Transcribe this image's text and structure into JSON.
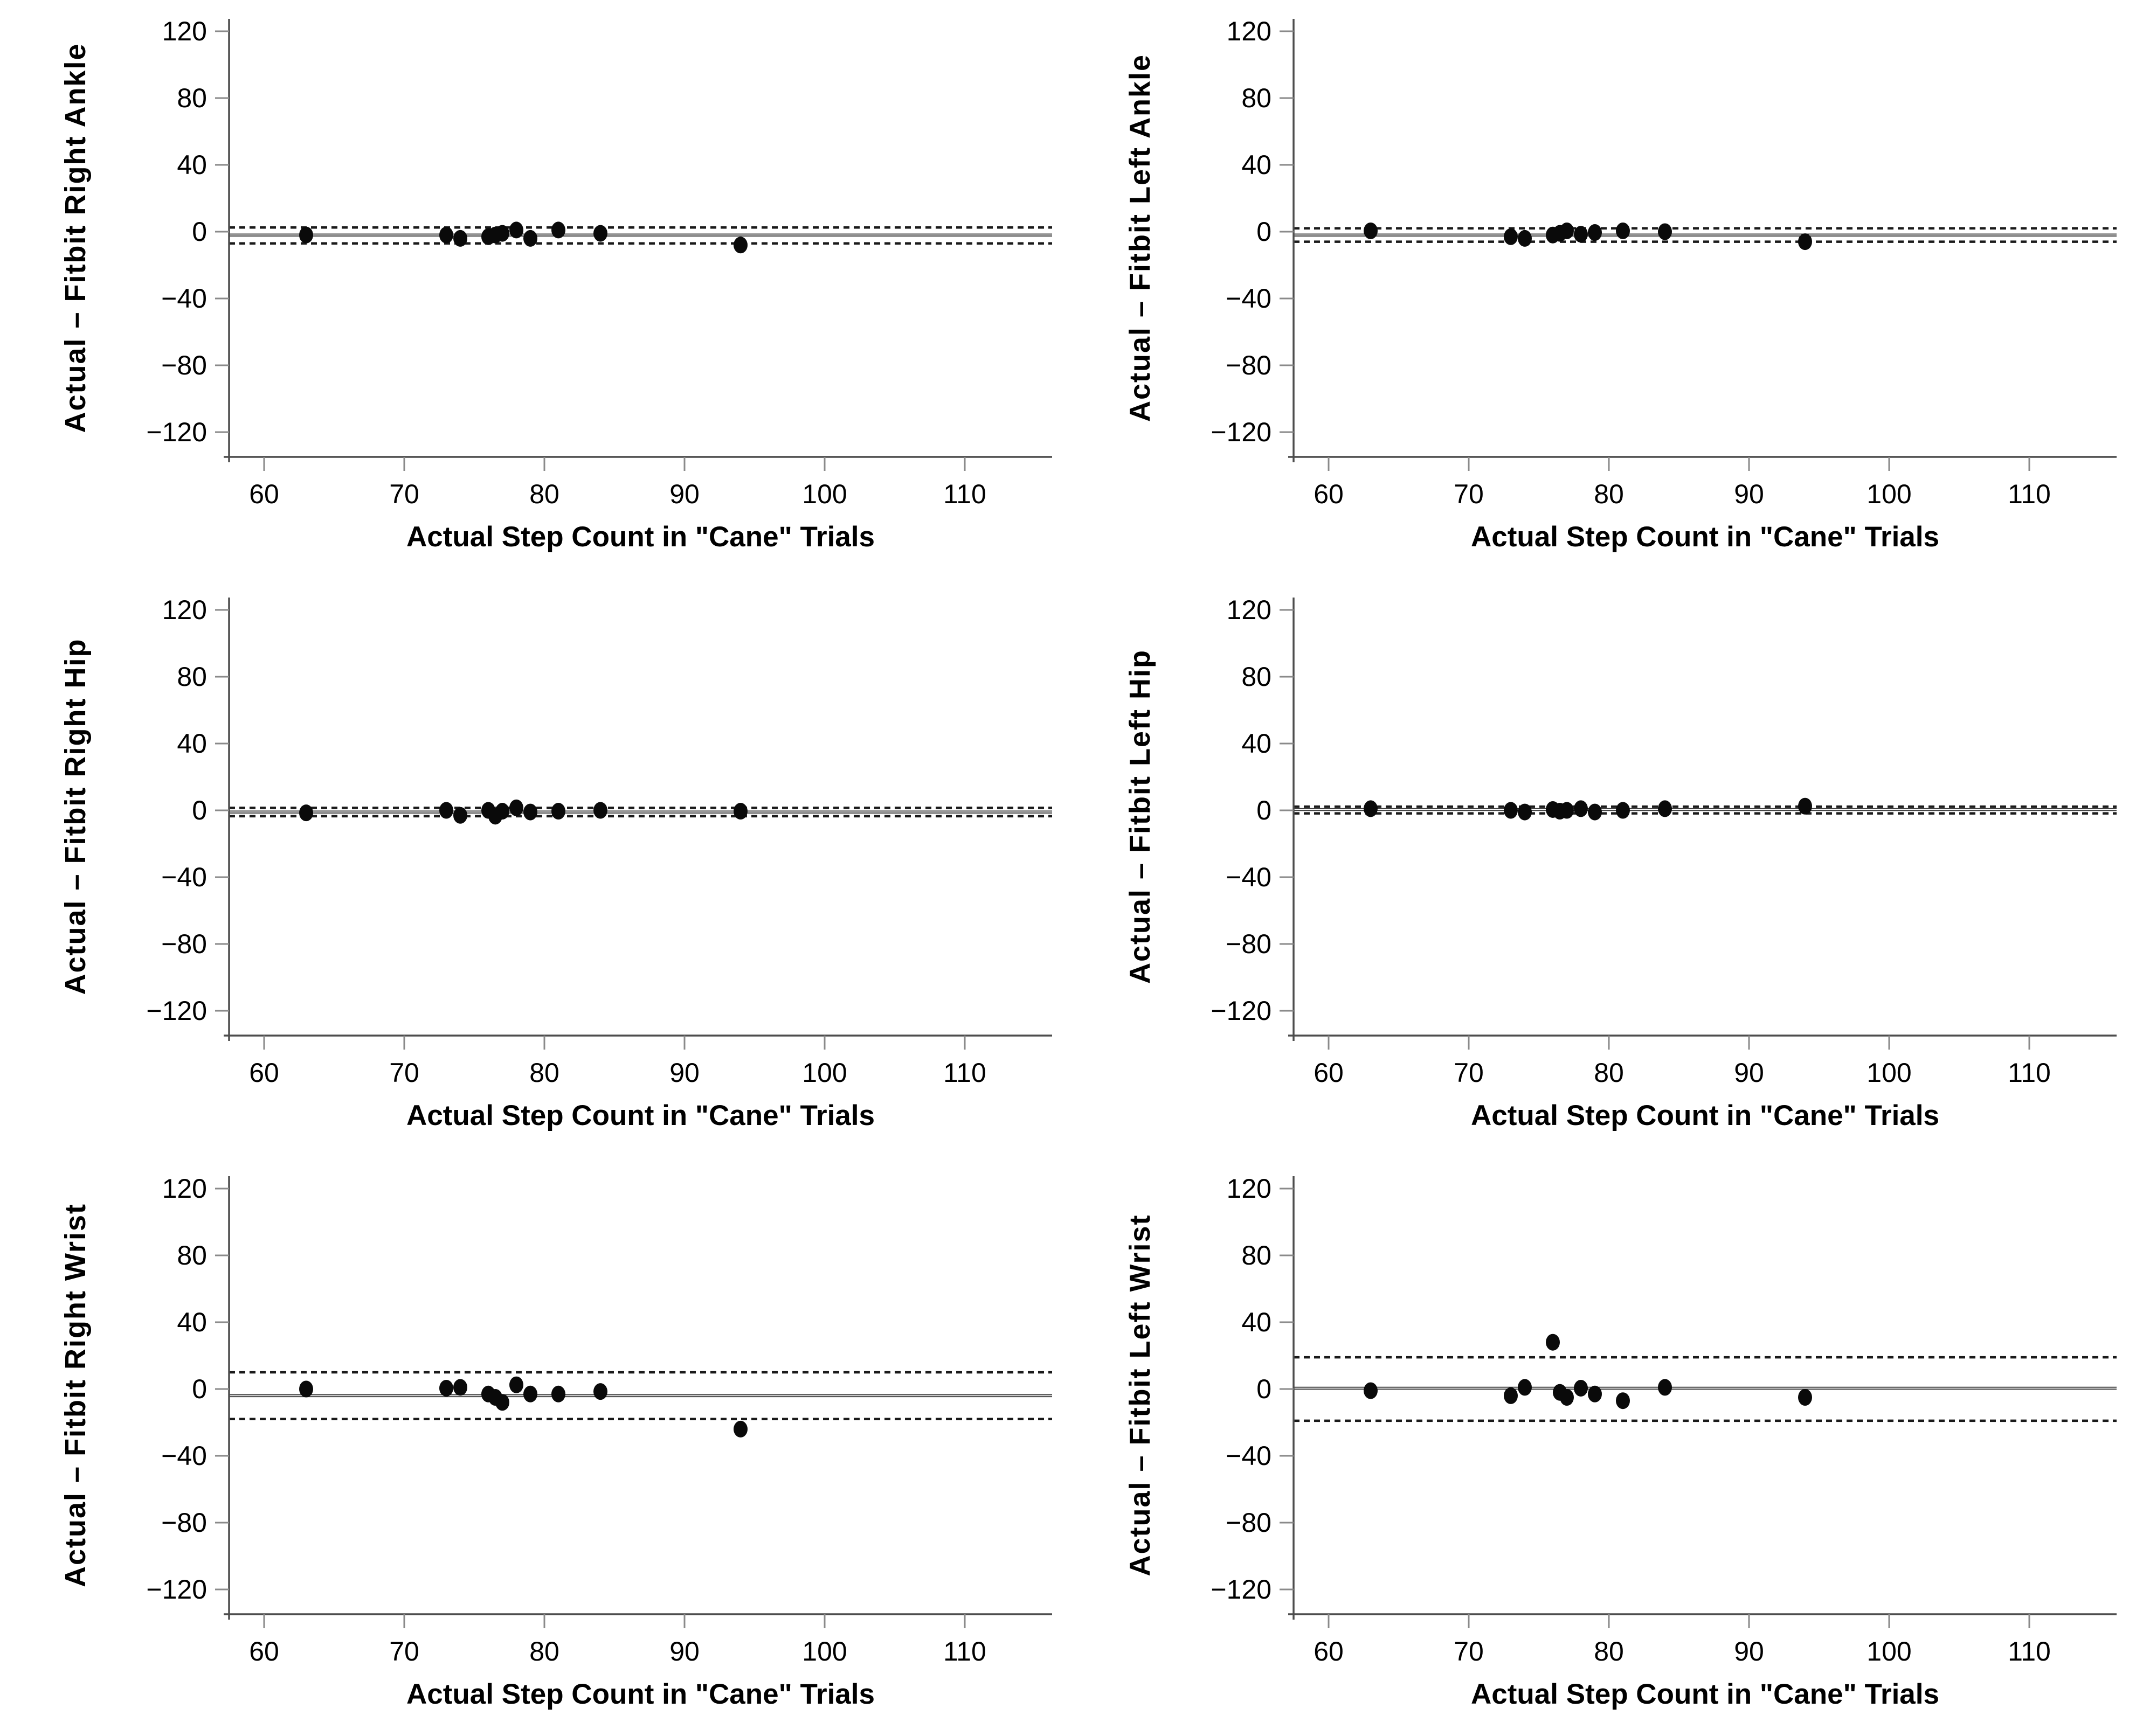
{
  "figure": {
    "description": "Bland-Altman plots of actual minus Fitbit step counts at six wear locations during cane trials",
    "background_color": "#ffffff",
    "point_color": "#0a0a0a",
    "mean_line_color": "#3a3a3a",
    "loa_line_color": "#1a1a1a",
    "axis_color": "#4d4d4d",
    "tick_color": "#8a8a8a"
  },
  "chart_data": [
    {
      "type": "scatter",
      "position": "top-left",
      "name": "right-ankle",
      "xlabel": "Actual Step Count in \"Cane\" Trials",
      "ylabel": "Actual – Fitbit Right Ankle",
      "xlim": [
        57,
        113
      ],
      "ylim": [
        -135,
        135
      ],
      "xticks": [
        60,
        70,
        80,
        90,
        100,
        110
      ],
      "yticks": [
        120,
        80,
        40,
        0,
        -40,
        -80,
        -120
      ],
      "grid": false,
      "legend": "none",
      "mean_line": -2,
      "upper_loa": 2.5,
      "lower_loa": -7,
      "points": [
        [
          63,
          -2
        ],
        [
          73,
          -2
        ],
        [
          74,
          -4
        ],
        [
          76,
          -3
        ],
        [
          76.5,
          -2
        ],
        [
          77,
          -1
        ],
        [
          78,
          1
        ],
        [
          79,
          -4
        ],
        [
          81,
          1
        ],
        [
          84,
          -1
        ],
        [
          94,
          -8
        ]
      ]
    },
    {
      "type": "scatter",
      "position": "top-right",
      "name": "left-ankle",
      "xlabel": "Actual Step Count in \"Cane\" Trials",
      "ylabel": "Actual – Fitbit Left Ankle",
      "xlim": [
        57,
        113
      ],
      "ylim": [
        -135,
        135
      ],
      "xticks": [
        60,
        70,
        80,
        90,
        100,
        110
      ],
      "yticks": [
        120,
        80,
        40,
        0,
        -40,
        -80,
        -120
      ],
      "grid": false,
      "legend": "none",
      "mean_line": -2,
      "upper_loa": 2,
      "lower_loa": -6,
      "points": [
        [
          63,
          0.5
        ],
        [
          73,
          -3
        ],
        [
          74,
          -4
        ],
        [
          76,
          -2
        ],
        [
          76.5,
          -1
        ],
        [
          77,
          0.5
        ],
        [
          78,
          -1.5
        ],
        [
          79,
          -0.5
        ],
        [
          81,
          0.5
        ],
        [
          84,
          0
        ],
        [
          94,
          -6
        ]
      ]
    },
    {
      "type": "scatter",
      "position": "middle-left",
      "name": "right-hip",
      "xlabel": "Actual Step Count in \"Cane\" Trials",
      "ylabel": "Actual – Fitbit Right Hip",
      "xlim": [
        57,
        113
      ],
      "ylim": [
        -135,
        135
      ],
      "xticks": [
        60,
        70,
        80,
        90,
        100,
        110
      ],
      "yticks": [
        120,
        80,
        40,
        0,
        -40,
        -80,
        -120
      ],
      "grid": false,
      "legend": "none",
      "mean_line": -1,
      "upper_loa": 1.5,
      "lower_loa": -3.5,
      "points": [
        [
          63,
          -1.5
        ],
        [
          73,
          0
        ],
        [
          74,
          -3
        ],
        [
          76,
          0
        ],
        [
          76.5,
          -3.5
        ],
        [
          77,
          -0.5
        ],
        [
          78,
          1.5
        ],
        [
          79,
          -1
        ],
        [
          81,
          -0.5
        ],
        [
          84,
          0
        ],
        [
          94,
          -0.5
        ]
      ]
    },
    {
      "type": "scatter",
      "position": "middle-right",
      "name": "left-hip",
      "xlabel": "Actual Step Count in \"Cane\" Trials",
      "ylabel": "Actual – Fitbit Left Hip",
      "xlim": [
        57,
        113
      ],
      "ylim": [
        -135,
        135
      ],
      "xticks": [
        60,
        70,
        80,
        90,
        100,
        110
      ],
      "yticks": [
        120,
        80,
        40,
        0,
        -40,
        -80,
        -120
      ],
      "grid": false,
      "legend": "none",
      "mean_line": 0.5,
      "upper_loa": 2.2,
      "lower_loa": -1.8,
      "points": [
        [
          63,
          1
        ],
        [
          73,
          0
        ],
        [
          74,
          -1
        ],
        [
          76,
          0.5
        ],
        [
          76.5,
          -0.5
        ],
        [
          77,
          0
        ],
        [
          78,
          1
        ],
        [
          79,
          -1
        ],
        [
          81,
          0
        ],
        [
          84,
          1
        ],
        [
          94,
          2.5
        ]
      ]
    },
    {
      "type": "scatter",
      "position": "bottom-left",
      "name": "right-wrist",
      "xlabel": "Actual Step Count in \"Cane\" Trials",
      "ylabel": "Actual – Fitbit Right Wrist",
      "xlim": [
        57,
        113
      ],
      "ylim": [
        -135,
        135
      ],
      "xticks": [
        60,
        70,
        80,
        90,
        100,
        110
      ],
      "yticks": [
        120,
        80,
        40,
        0,
        -40,
        -80,
        -120
      ],
      "grid": false,
      "legend": "none",
      "mean_line": -4,
      "upper_loa": 10,
      "lower_loa": -18,
      "points": [
        [
          63,
          0
        ],
        [
          73,
          0.5
        ],
        [
          74,
          1
        ],
        [
          76,
          -3
        ],
        [
          76.5,
          -5
        ],
        [
          77,
          -8
        ],
        [
          78,
          2.5
        ],
        [
          79,
          -3
        ],
        [
          81,
          -3
        ],
        [
          84,
          -1.5
        ],
        [
          94,
          -24
        ]
      ]
    },
    {
      "type": "scatter",
      "position": "bottom-right",
      "name": "left-wrist",
      "xlabel": "Actual Step Count in \"Cane\" Trials",
      "ylabel": "Actual – Fitbit Left Wrist",
      "xlim": [
        57,
        113
      ],
      "ylim": [
        -135,
        135
      ],
      "xticks": [
        60,
        70,
        80,
        90,
        100,
        110
      ],
      "yticks": [
        120,
        80,
        40,
        0,
        -40,
        -80,
        -120
      ],
      "grid": false,
      "legend": "none",
      "mean_line": 0.5,
      "upper_loa": 19,
      "lower_loa": -19,
      "points": [
        [
          63,
          -1
        ],
        [
          73,
          -4
        ],
        [
          74,
          1
        ],
        [
          76,
          28
        ],
        [
          76.5,
          -2
        ],
        [
          77,
          -5
        ],
        [
          78,
          0.5
        ],
        [
          79,
          -3
        ],
        [
          81,
          -7
        ],
        [
          84,
          1
        ],
        [
          94,
          -5
        ]
      ]
    }
  ]
}
